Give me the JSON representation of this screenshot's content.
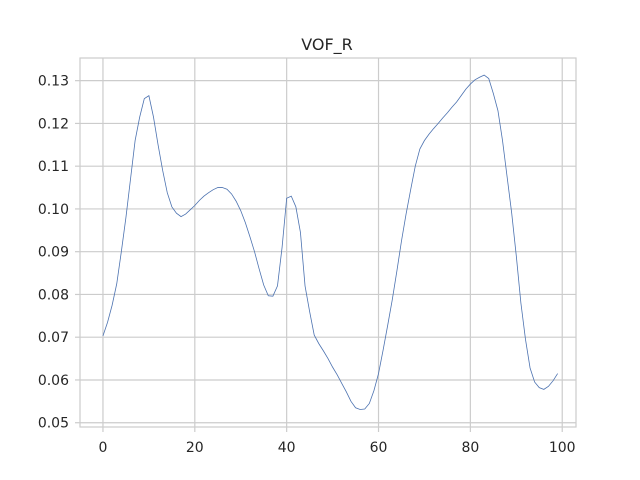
{
  "chart_data": {
    "type": "line",
    "title": "VOF_R",
    "xlabel": "",
    "ylabel": "",
    "xlim": [
      -5,
      103
    ],
    "ylim": [
      0.049,
      0.1353
    ],
    "xticks": [
      0,
      20,
      40,
      60,
      80,
      100
    ],
    "yticks": [
      0.05,
      0.06,
      0.07,
      0.08,
      0.09,
      0.1,
      0.11,
      0.12,
      0.13
    ],
    "xtick_labels": [
      "0",
      "20",
      "40",
      "60",
      "80",
      "100"
    ],
    "ytick_labels": [
      "0.05",
      "0.06",
      "0.07",
      "0.08",
      "0.09",
      "0.10",
      "0.11",
      "0.12",
      "0.13"
    ],
    "grid": true,
    "legend": "none",
    "series": [
      {
        "color": "#4c72b0",
        "x": [
          0,
          1,
          2,
          3,
          4,
          5,
          6,
          7,
          8,
          9,
          10,
          11,
          12,
          13,
          14,
          15,
          16,
          17,
          18,
          19,
          20,
          21,
          22,
          23,
          24,
          25,
          26,
          27,
          28,
          29,
          30,
          31,
          32,
          33,
          34,
          35,
          36,
          37,
          38,
          39,
          40,
          41,
          42,
          43,
          44,
          45,
          46,
          47,
          48,
          49,
          50,
          51,
          52,
          53,
          54,
          55,
          56,
          57,
          58,
          59,
          60,
          61,
          62,
          63,
          64,
          65,
          66,
          67,
          68,
          69,
          70,
          71,
          72,
          73,
          74,
          75,
          76,
          77,
          78,
          79,
          80,
          81,
          82,
          83,
          84,
          85,
          86,
          87,
          88,
          89,
          90,
          91,
          92,
          93,
          94,
          95,
          96,
          97,
          98,
          99
        ],
        "y": [
          0.0703,
          0.0735,
          0.0775,
          0.0825,
          0.09,
          0.098,
          0.107,
          0.116,
          0.1215,
          0.1258,
          0.1265,
          0.1215,
          0.115,
          0.109,
          0.1038,
          0.1005,
          0.099,
          0.0982,
          0.0988,
          0.0998,
          0.1008,
          0.102,
          0.103,
          0.1038,
          0.1045,
          0.105,
          0.105,
          0.1046,
          0.1035,
          0.1018,
          0.0996,
          0.0968,
          0.0935,
          0.09,
          0.086,
          0.0822,
          0.0797,
          0.0796,
          0.082,
          0.091,
          0.1025,
          0.103,
          0.1005,
          0.0945,
          0.082,
          0.076,
          0.0705,
          0.0685,
          0.0668,
          0.065,
          0.063,
          0.0612,
          0.0592,
          0.0572,
          0.055,
          0.0535,
          0.0531,
          0.0532,
          0.0545,
          0.0575,
          0.0615,
          0.067,
          0.0728,
          0.0788,
          0.0855,
          0.0925,
          0.0988,
          0.1045,
          0.11,
          0.114,
          0.116,
          0.1175,
          0.1188,
          0.12,
          0.1213,
          0.1225,
          0.1238,
          0.125,
          0.1265,
          0.128,
          0.1292,
          0.1302,
          0.1308,
          0.1313,
          0.1305,
          0.127,
          0.123,
          0.116,
          0.1075,
          0.099,
          0.089,
          0.078,
          0.0695,
          0.0628,
          0.0595,
          0.0582,
          0.0578,
          0.0585,
          0.0598,
          0.0615
        ]
      }
    ]
  }
}
